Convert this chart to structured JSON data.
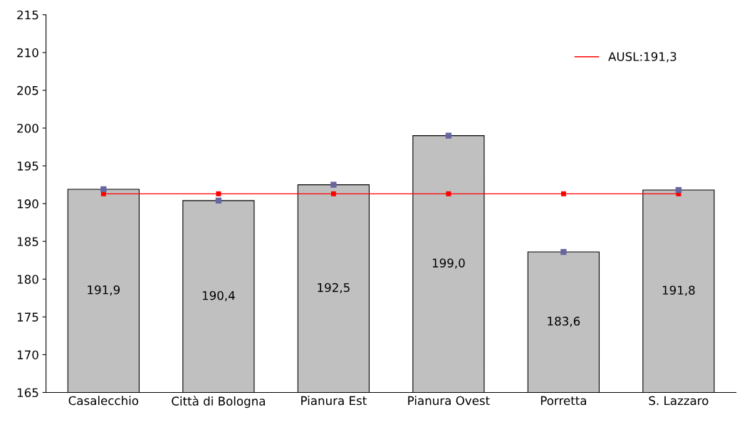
{
  "chart_data": {
    "type": "bar",
    "categories": [
      "Casalecchio",
      "Città di Bologna",
      "Pianura Est",
      "Pianura Ovest",
      "Porretta",
      "S. Lazzaro"
    ],
    "series": [
      {
        "color": "#c0c0c0",
        "values": [
          191.9,
          190.4,
          192.5,
          199.0,
          183.6,
          191.8
        ],
        "value_labels": [
          "191,9",
          "190,4",
          "192,5",
          "199,0",
          "183,6",
          "191,8"
        ]
      },
      {
        "type": "scatter",
        "marker": "square",
        "color": "#6666a0",
        "values": [
          191.9,
          190.4,
          192.5,
          199.0,
          183.6,
          191.8
        ]
      },
      {
        "type": "line",
        "name": "AUSL:191,3",
        "marker": "square",
        "color": "#ff0000",
        "values": [
          191.3,
          191.3,
          191.3,
          191.3,
          191.3,
          191.3
        ]
      }
    ],
    "ylim": [
      165,
      215
    ],
    "yticks": [
      165,
      170,
      175,
      180,
      185,
      190,
      195,
      200,
      205,
      210,
      215
    ],
    "grid": false,
    "legend": "top right"
  }
}
